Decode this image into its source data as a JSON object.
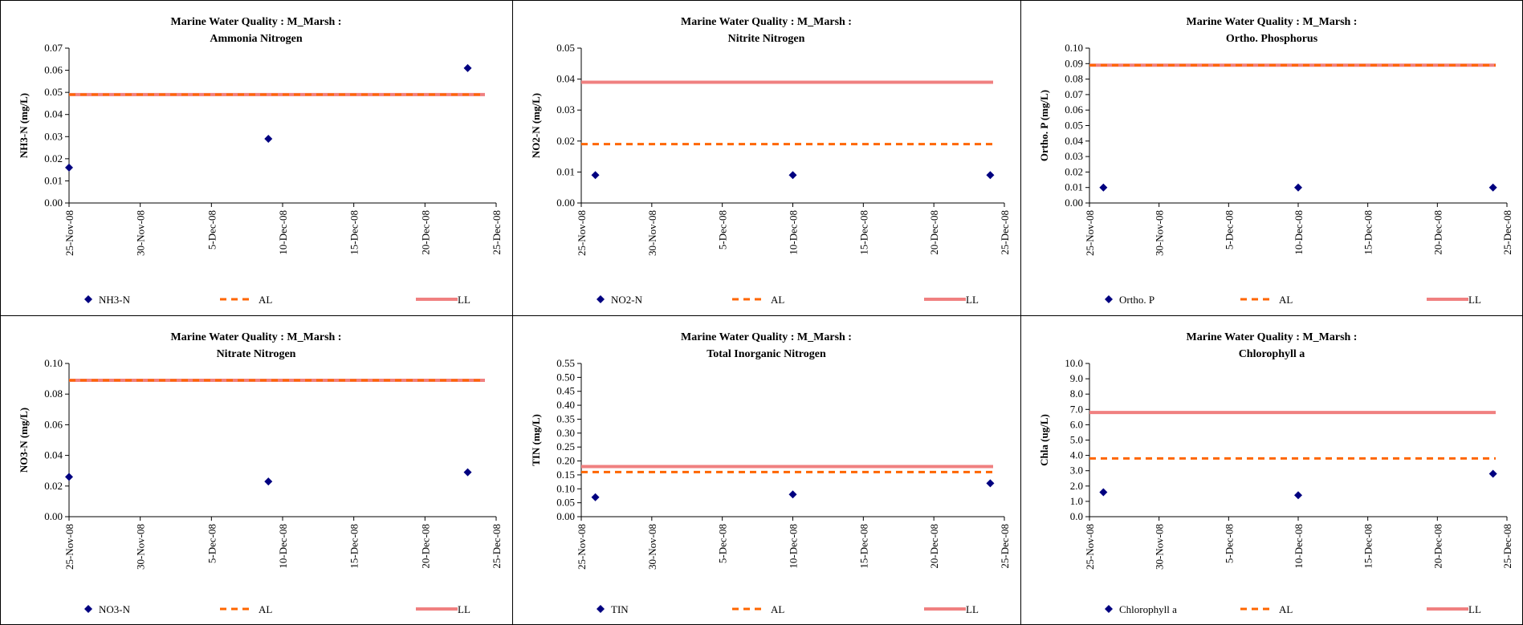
{
  "chart_data": [
    {
      "type": "scatter",
      "title": [
        "Marine Water Quality : M_Marsh :",
        "Ammonia Nitrogen"
      ],
      "ylabel": "NH3-N (mg/L)",
      "ylim": [
        0,
        0.07
      ],
      "ystep": 0.01,
      "ydec": 2,
      "x_ticks": [
        "25-Nov-08",
        "30-Nov-08",
        "5-Dec-08",
        "10-Dec-08",
        "15-Dec-08",
        "20-Dec-08",
        "25-Dec-08"
      ],
      "series": [
        {
          "name": "NH3-N",
          "x": [
            "25-Nov-08",
            "9-Dec-08",
            "23-Dec-08"
          ],
          "y": [
            0.016,
            0.029,
            0.061
          ]
        }
      ],
      "lines": [
        {
          "name": "AL",
          "value": 0.049,
          "style": "dash"
        },
        {
          "name": "LL",
          "value": 0.049,
          "style": "solid"
        }
      ],
      "legend": [
        "NH3-N",
        "AL",
        "LL"
      ],
      "legend_position": "bottom"
    },
    {
      "type": "scatter",
      "title": [
        "Marine Water Quality : M_Marsh :",
        "Nitrite Nitrogen"
      ],
      "ylabel": "NO2-N (mg/L)",
      "ylim": [
        0,
        0.05
      ],
      "ystep": 0.01,
      "ydec": 2,
      "x_ticks": [
        "25-Nov-08",
        "30-Nov-08",
        "5-Dec-08",
        "10-Dec-08",
        "15-Dec-08",
        "20-Dec-08",
        "25-Dec-08"
      ],
      "series": [
        {
          "name": "NO2-N",
          "x": [
            "26-Nov-08",
            "10-Dec-08",
            "24-Dec-08"
          ],
          "y": [
            0.009,
            0.009,
            0.009
          ]
        }
      ],
      "lines": [
        {
          "name": "AL",
          "value": 0.019,
          "style": "dash"
        },
        {
          "name": "LL",
          "value": 0.039,
          "style": "solid"
        }
      ],
      "legend": [
        "NO2-N",
        "AL",
        "LL"
      ],
      "legend_position": "bottom"
    },
    {
      "type": "scatter",
      "title": [
        "Marine Water Quality : M_Marsh :",
        "Ortho. Phosphorus"
      ],
      "ylabel": "Ortho. P (mg/L)",
      "ylim": [
        0,
        0.1
      ],
      "ystep": 0.01,
      "ydec": 2,
      "x_ticks": [
        "25-Nov-08",
        "30-Nov-08",
        "5-Dec-08",
        "10-Dec-08",
        "15-Dec-08",
        "20-Dec-08",
        "25-Dec-08"
      ],
      "series": [
        {
          "name": "Ortho. P",
          "x": [
            "26-Nov-08",
            "10-Dec-08",
            "24-Dec-08"
          ],
          "y": [
            0.01,
            0.01,
            0.01
          ]
        }
      ],
      "lines": [
        {
          "name": "AL",
          "value": 0.089,
          "style": "dash"
        },
        {
          "name": "LL",
          "value": 0.089,
          "style": "solid"
        }
      ],
      "legend": [
        "Ortho. P",
        "AL",
        "LL"
      ],
      "legend_position": "bottom"
    },
    {
      "type": "scatter",
      "title": [
        "Marine Water Quality : M_Marsh :",
        "Nitrate Nitrogen"
      ],
      "ylabel": "NO3-N (mg/L)",
      "ylim": [
        0,
        0.1
      ],
      "ystep": 0.02,
      "ydec": 2,
      "x_ticks": [
        "25-Nov-08",
        "30-Nov-08",
        "5-Dec-08",
        "10-Dec-08",
        "15-Dec-08",
        "20-Dec-08",
        "25-Dec-08"
      ],
      "series": [
        {
          "name": "NO3-N",
          "x": [
            "25-Nov-08",
            "9-Dec-08",
            "23-Dec-08"
          ],
          "y": [
            0.026,
            0.023,
            0.029
          ]
        }
      ],
      "lines": [
        {
          "name": "AL",
          "value": 0.089,
          "style": "dash"
        },
        {
          "name": "LL",
          "value": 0.089,
          "style": "solid"
        }
      ],
      "legend": [
        "NO3-N",
        "AL",
        "LL"
      ],
      "legend_position": "bottom"
    },
    {
      "type": "scatter",
      "title": [
        "Marine Water Quality : M_Marsh :",
        "Total Inorganic Nitrogen"
      ],
      "ylabel": "TIN (mg/L)",
      "ylim": [
        0,
        0.55
      ],
      "ystep": 0.05,
      "ydec": 2,
      "x_ticks": [
        "25-Nov-08",
        "30-Nov-08",
        "5-Dec-08",
        "10-Dec-08",
        "15-Dec-08",
        "20-Dec-08",
        "25-Dec-08"
      ],
      "series": [
        {
          "name": "TIN",
          "x": [
            "26-Nov-08",
            "10-Dec-08",
            "24-Dec-08"
          ],
          "y": [
            0.07,
            0.08,
            0.12
          ]
        }
      ],
      "lines": [
        {
          "name": "AL",
          "value": 0.16,
          "style": "dash"
        },
        {
          "name": "LL",
          "value": 0.18,
          "style": "solid"
        }
      ],
      "legend": [
        "TIN",
        "AL",
        "LL"
      ],
      "legend_position": "bottom"
    },
    {
      "type": "scatter",
      "title": [
        "Marine Water Quality : M_Marsh :",
        "Chlorophyll a"
      ],
      "ylabel": "Chla (ug/L)",
      "ylim": [
        0,
        10
      ],
      "ystep": 1,
      "ydec": 1,
      "x_ticks": [
        "25-Nov-08",
        "30-Nov-08",
        "5-Dec-08",
        "10-Dec-08",
        "15-Dec-08",
        "20-Dec-08",
        "25-Dec-08"
      ],
      "series": [
        {
          "name": "Chlorophyll a",
          "x": [
            "26-Nov-08",
            "10-Dec-08",
            "24-Dec-08"
          ],
          "y": [
            1.6,
            1.4,
            2.8
          ]
        }
      ],
      "lines": [
        {
          "name": "AL",
          "value": 3.8,
          "style": "dash"
        },
        {
          "name": "LL",
          "value": 6.8,
          "style": "solid"
        }
      ],
      "legend": [
        "Chlorophyll a",
        "AL",
        "LL"
      ],
      "legend_position": "bottom"
    }
  ],
  "colors": {
    "marker": "#000080",
    "al_line": "#ff6600",
    "ll_line": "#f08080",
    "border": "#000000"
  }
}
